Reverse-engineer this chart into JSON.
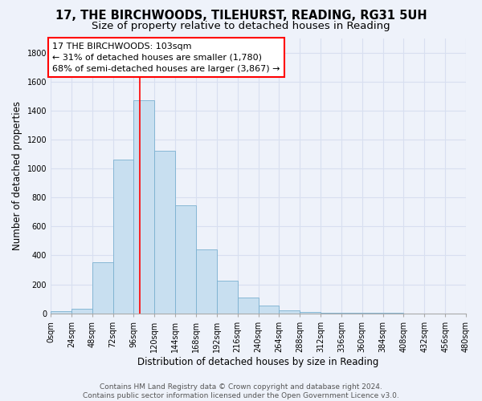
{
  "title": "17, THE BIRCHWOODS, TILEHURST, READING, RG31 5UH",
  "subtitle": "Size of property relative to detached houses in Reading",
  "xlabel": "Distribution of detached houses by size in Reading",
  "ylabel": "Number of detached properties",
  "bin_edges": [
    0,
    24,
    48,
    72,
    96,
    120,
    144,
    168,
    192,
    216,
    240,
    264,
    288,
    312,
    336,
    360,
    384,
    408,
    432,
    456,
    480
  ],
  "bar_values": [
    15,
    30,
    355,
    1060,
    1470,
    1120,
    745,
    440,
    225,
    110,
    55,
    20,
    10,
    5,
    2,
    1,
    1,
    0,
    0,
    0
  ],
  "bar_color": "#c8dff0",
  "bar_edge_color": "#7ab0d0",
  "property_size": 103,
  "ylim": [
    0,
    1900
  ],
  "yticks": [
    0,
    200,
    400,
    600,
    800,
    1000,
    1200,
    1400,
    1600,
    1800
  ],
  "xtick_labels": [
    "0sqm",
    "24sqm",
    "48sqm",
    "72sqm",
    "96sqm",
    "120sqm",
    "144sqm",
    "168sqm",
    "192sqm",
    "216sqm",
    "240sqm",
    "264sqm",
    "288sqm",
    "312sqm",
    "336sqm",
    "360sqm",
    "384sqm",
    "408sqm",
    "432sqm",
    "456sqm",
    "480sqm"
  ],
  "annotation_title": "17 THE BIRCHWOODS: 103sqm",
  "annotation_line1": "← 31% of detached houses are smaller (1,780)",
  "annotation_line2": "68% of semi-detached houses are larger (3,867) →",
  "footer_line1": "Contains HM Land Registry data © Crown copyright and database right 2024.",
  "footer_line2": "Contains public sector information licensed under the Open Government Licence v3.0.",
  "background_color": "#eef2fa",
  "grid_color": "#d8dff0",
  "title_fontsize": 10.5,
  "subtitle_fontsize": 9.5,
  "axis_label_fontsize": 8.5,
  "tick_fontsize": 7,
  "footer_fontsize": 6.5,
  "annotation_fontsize": 8
}
